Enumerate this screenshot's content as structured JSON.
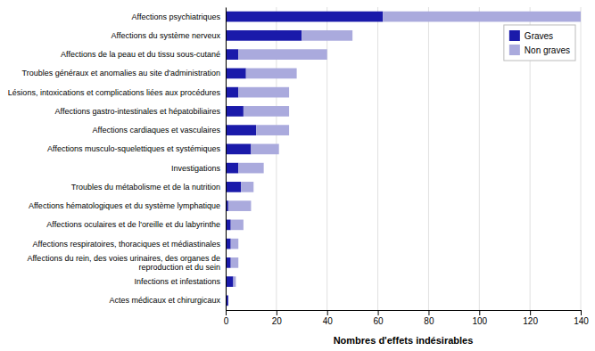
{
  "chart_data": {
    "type": "bar",
    "orientation": "horizontal",
    "stacked": true,
    "categories": [
      "Actes médicaux et chirurgicaux",
      "Infections et infestations",
      "Affections du rein, des voies urinaires, des organes de reproduction et du sein",
      "Affections respiratoires, thoraciques et médiastinales",
      "Affections oculaires et de l'oreille et du labyrinthe",
      "Affections hématologiques et du système lymphatique",
      "Troubles du métabolisme et de la nutrition",
      "Investigations",
      "Affections musculo-squelettiques et systémiques",
      "Affections cardiaques et vasculaires",
      "Affections gastro-intestinales et hépatobiliaires",
      "Lésions, intoxications et complications liées aux procédures",
      "Troubles généraux et anomalies au site d'administration",
      "Affections de la peau et du tissu sous-cutané",
      "Affections du système nerveux",
      "Affections psychiatriques"
    ],
    "series": [
      {
        "name": "Graves",
        "color": "#1a1aaa",
        "values": [
          1,
          3,
          2,
          2,
          2,
          1,
          6,
          5,
          10,
          12,
          7,
          5,
          8,
          5,
          30,
          62
        ]
      },
      {
        "name": "Non graves",
        "color": "#aaaadd",
        "values": [
          0,
          1,
          3,
          3,
          5,
          9,
          5,
          10,
          11,
          13,
          18,
          20,
          20,
          35,
          20,
          78
        ]
      }
    ],
    "xlabel": "Nombres d'effets indésirables",
    "xlim": [
      0,
      140
    ],
    "xticks": [
      0,
      20,
      40,
      60,
      80,
      100,
      120,
      140
    ],
    "grid": true,
    "legend": "upper right"
  }
}
